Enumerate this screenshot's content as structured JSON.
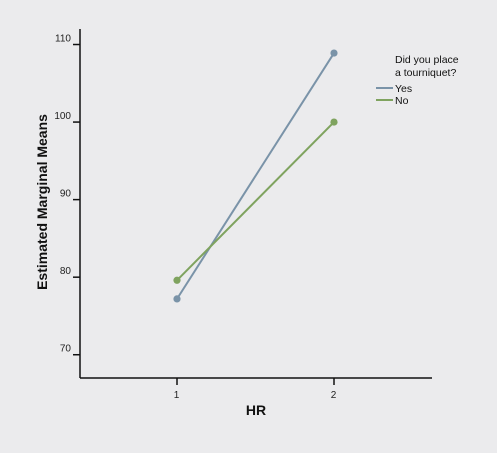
{
  "chart_data": {
    "type": "line",
    "xlabel": "HR",
    "ylabel": "Estimated Marginal Means",
    "x": [
      1,
      2
    ],
    "x_ticks": [
      "1",
      "2"
    ],
    "ylim": [
      67,
      112
    ],
    "y_ticks": [
      70,
      80,
      90,
      100,
      110
    ],
    "grid": false,
    "legend": {
      "title_lines": [
        "Did you place",
        "a tourniquet?"
      ],
      "placement": "top-right"
    },
    "series": [
      {
        "name": "Yes",
        "values": [
          77.2,
          108.9
        ],
        "color": "#7a93a8"
      },
      {
        "name": "No",
        "values": [
          79.6,
          100.0
        ],
        "color": "#7fa35f"
      }
    ]
  }
}
